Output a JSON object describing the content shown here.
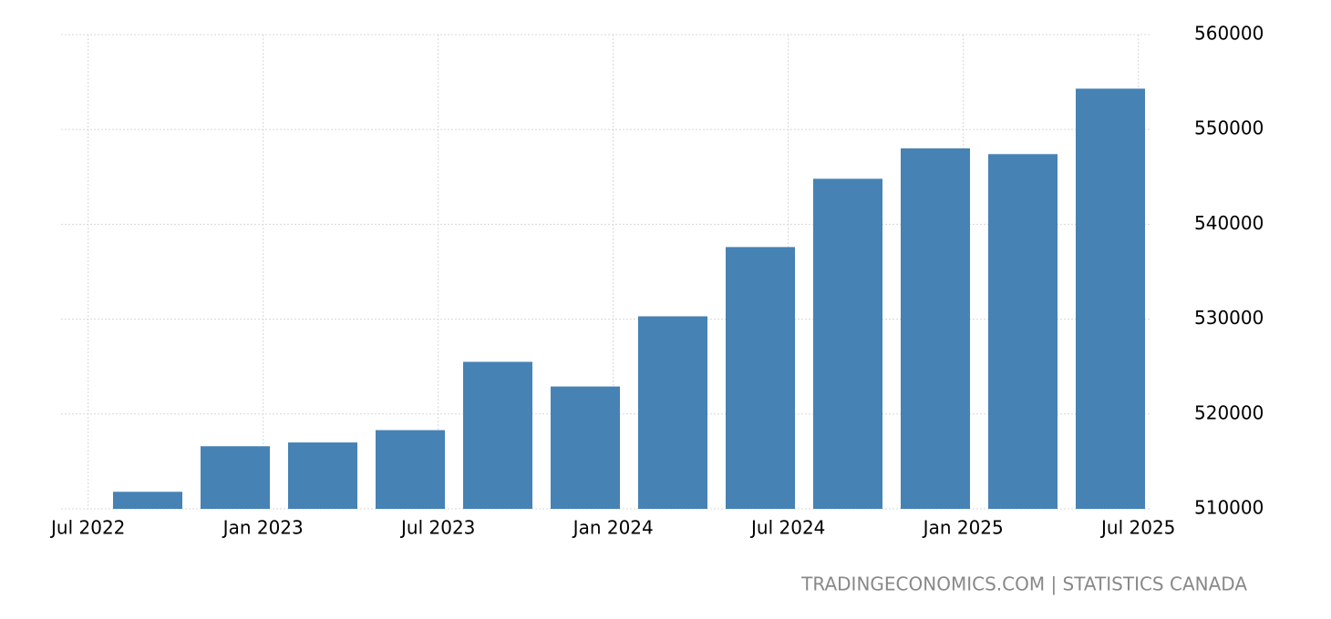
{
  "chart_data": {
    "type": "bar",
    "categories": [
      null,
      null,
      null,
      null,
      null,
      null,
      null,
      null,
      null,
      null,
      null,
      null
    ],
    "values": [
      511800,
      516600,
      517000,
      518300,
      525500,
      522900,
      530300,
      537600,
      544800,
      548000,
      547400,
      554300
    ],
    "color": "#4682b4",
    "ylim": [
      510000,
      560000
    ],
    "yticks": [
      510000,
      520000,
      530000,
      540000,
      550000,
      560000
    ],
    "xticks": [
      "Jul 2022",
      "Jan 2023",
      "Jul 2023",
      "Jan 2024",
      "Jul 2024",
      "Jan 2025",
      "Jul 2025"
    ],
    "grid": true,
    "source": "TRADINGECONOMICS.COM | STATISTICS CANADA"
  }
}
